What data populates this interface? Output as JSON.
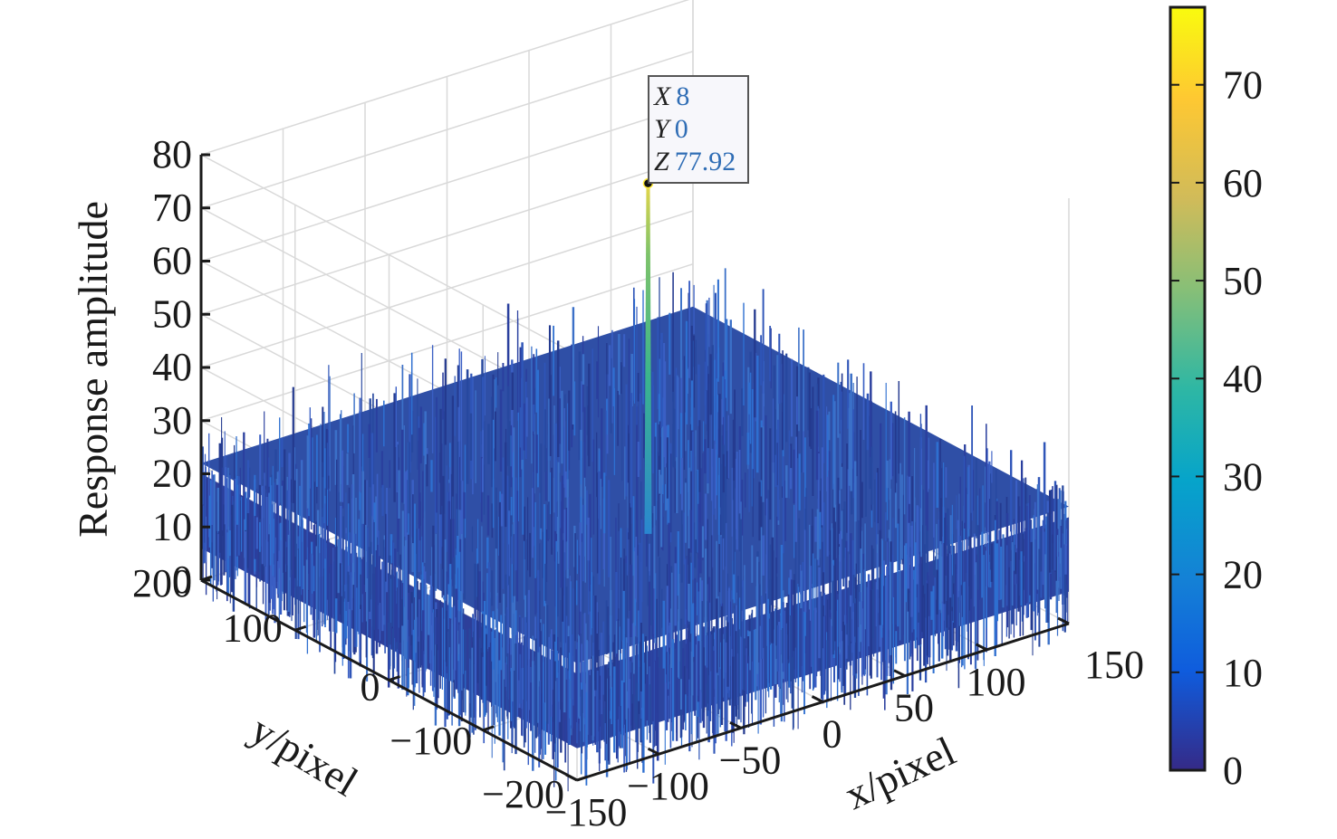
{
  "chart_data": {
    "type": "surface",
    "xlabel": "x/pixel",
    "ylabel": "y/pixel",
    "zlabel": "Response amplitude",
    "xlim": [
      -150,
      150
    ],
    "ylim": [
      -200,
      200
    ],
    "zlim": [
      0,
      80
    ],
    "x_ticks": [
      "−150",
      "−100",
      "−50",
      "0",
      "50",
      "100",
      "150"
    ],
    "y_ticks": [
      "−200",
      "−100",
      "0",
      "100",
      "200"
    ],
    "z_ticks": [
      "0",
      "10",
      "20",
      "30",
      "40",
      "50",
      "60",
      "70",
      "80"
    ],
    "grid": true,
    "colormap": "parula",
    "colorbar": {
      "ticks": [
        "0",
        "10",
        "20",
        "30",
        "40",
        "50",
        "60",
        "70"
      ],
      "range": [
        0,
        77.92
      ]
    },
    "surface": {
      "noise_floor_typical": [
        5,
        25
      ],
      "noise_max": 35
    },
    "peak": {
      "x": 8,
      "y": 0,
      "z": 77.92
    },
    "datatip": {
      "x_label": "X",
      "x_value": "8",
      "y_label": "Y",
      "y_value": "0",
      "z_label": "Z",
      "z_value": "77.92"
    }
  }
}
